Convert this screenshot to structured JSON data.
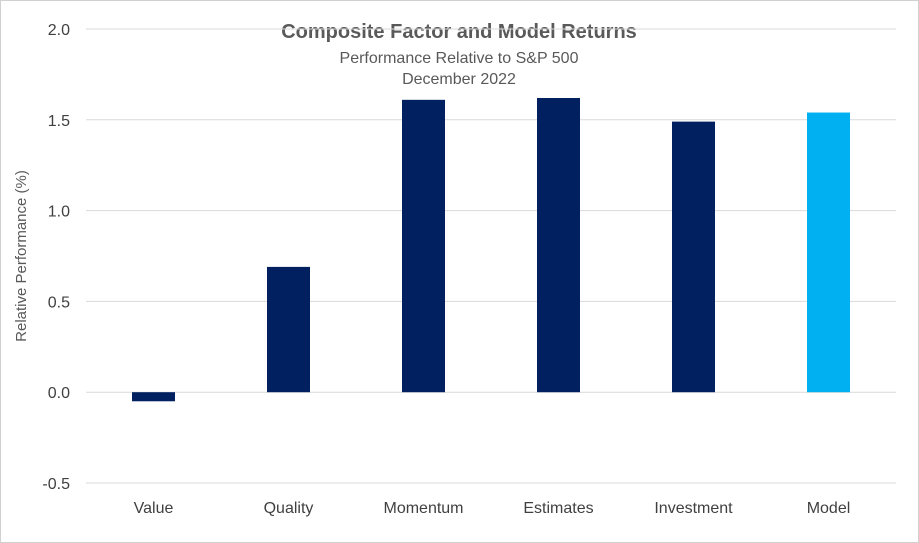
{
  "chart_data": {
    "type": "bar",
    "title": "Composite Factor and Model Returns",
    "subtitle": [
      "Performance Relative to S&P 500",
      "December 2022"
    ],
    "ylabel": "Relative Performance (%)",
    "xlabel": "",
    "ylim": [
      -0.5,
      2.0
    ],
    "yticks": [
      "2.0",
      "1.5",
      "1.0",
      "0.5",
      "0.0",
      "-0.5"
    ],
    "ytick_values": [
      2.0,
      1.5,
      1.0,
      0.5,
      0.0,
      -0.5
    ],
    "grid": true,
    "categories": [
      "Value",
      "Quality",
      "Momentum",
      "Estimates",
      "Investment",
      "Model"
    ],
    "values": [
      -0.05,
      0.69,
      1.61,
      1.62,
      1.49,
      1.54
    ],
    "colors": [
      "#002060",
      "#002060",
      "#002060",
      "#002060",
      "#002060",
      "#00B0F0"
    ]
  }
}
